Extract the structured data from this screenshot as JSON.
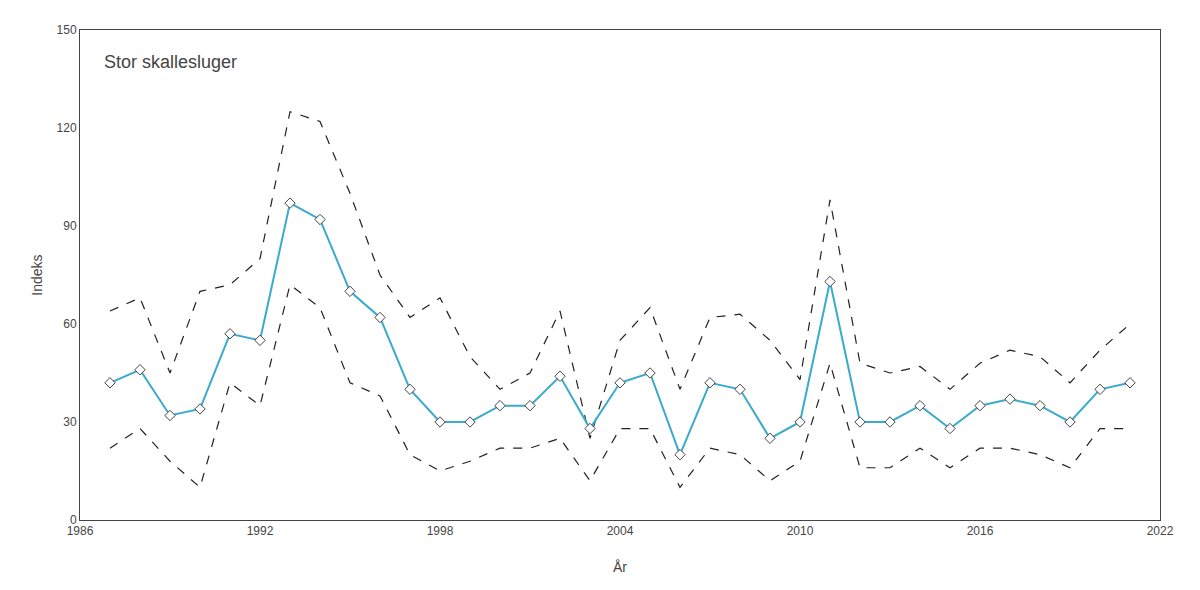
{
  "chart_data": {
    "type": "line",
    "title": "Stor skallesluger",
    "xlabel": "År",
    "ylabel": "Indeks",
    "x": [
      1987,
      1988,
      1989,
      1990,
      1991,
      1992,
      1993,
      1994,
      1995,
      1996,
      1997,
      1998,
      1999,
      2000,
      2001,
      2002,
      2003,
      2004,
      2005,
      2006,
      2007,
      2008,
      2009,
      2010,
      2011,
      2012,
      2013,
      2014,
      2015,
      2016,
      2017,
      2018,
      2019,
      2020,
      2021
    ],
    "series": [
      {
        "color": "#222222",
        "line_style": "dashed",
        "values": [
          64,
          68,
          45,
          70,
          72,
          80,
          125,
          122,
          100,
          75,
          62,
          68,
          50,
          40,
          45,
          64,
          25,
          55,
          65,
          40,
          62,
          63,
          55,
          43,
          98,
          48,
          45,
          47,
          40,
          48,
          52,
          50,
          42,
          52,
          60
        ]
      },
      {
        "color": "#222222",
        "line_style": "dashed",
        "values": [
          22,
          28,
          18,
          10,
          42,
          35,
          72,
          65,
          42,
          38,
          20,
          15,
          18,
          22,
          22,
          25,
          12,
          28,
          28,
          10,
          22,
          20,
          12,
          18,
          48,
          16,
          16,
          22,
          16,
          22,
          22,
          20,
          16,
          28,
          28
        ]
      },
      {
        "color": "#3aabcc",
        "line_style": "solid",
        "marker": "diamond",
        "values": [
          42,
          46,
          32,
          34,
          57,
          55,
          97,
          92,
          70,
          62,
          40,
          30,
          30,
          35,
          35,
          44,
          28,
          42,
          45,
          20,
          42,
          40,
          25,
          30,
          73,
          30,
          30,
          35,
          28,
          35,
          37,
          35,
          30,
          40,
          42
        ]
      }
    ],
    "xlim": [
      1986,
      2022
    ],
    "xticks": [
      1986,
      1992,
      1998,
      2004,
      2010,
      2016,
      2022
    ],
    "ylim": [
      0,
      150
    ],
    "yticks": [
      0,
      30,
      60,
      90,
      120,
      150
    ],
    "grid": false
  }
}
